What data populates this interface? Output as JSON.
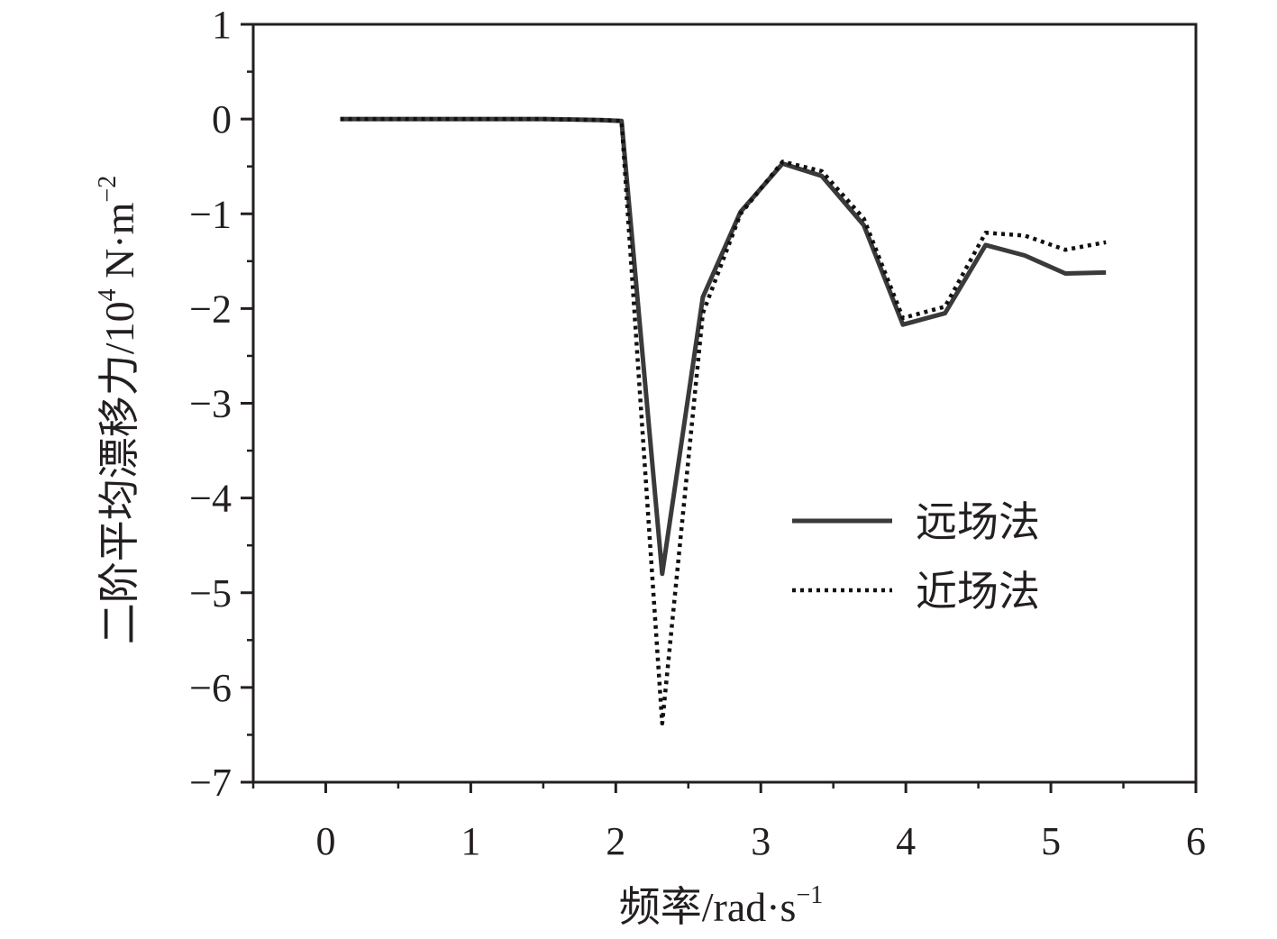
{
  "chart_data": {
    "type": "line",
    "xlabel": "频率/rad·s",
    "xlabel_sup": "−1",
    "ylabel": "二阶平均漂移力/10",
    "ylabel_sup1": "4",
    "ylabel_mid": " N·m",
    "ylabel_sup2": "−2",
    "xlim": [
      -0.5,
      6
    ],
    "ylim": [
      -7,
      1
    ],
    "xticks": [
      0,
      1,
      2,
      3,
      4,
      5,
      6
    ],
    "xtick_labels": [
      "0",
      "1",
      "2",
      "3",
      "4",
      "5",
      "6"
    ],
    "yticks": [
      1,
      0,
      -1,
      -2,
      -3,
      -4,
      -5,
      -6,
      -7
    ],
    "ytick_labels": [
      "1",
      "0",
      "−1",
      "−2",
      "−3",
      "−4",
      "−5",
      "−6",
      "−7"
    ],
    "legend_position": "center-right",
    "series": [
      {
        "name": "远场法",
        "style": "solid",
        "color": "#3a3a3a",
        "x": [
          0.1,
          0.5,
          1.0,
          1.5,
          1.9,
          2.04,
          2.32,
          2.6,
          2.86,
          3.15,
          3.42,
          3.71,
          3.98,
          4.27,
          4.55,
          4.82,
          5.1,
          5.38
        ],
        "y": [
          0,
          0,
          0,
          0,
          -0.01,
          -0.02,
          -4.8,
          -1.88,
          -0.98,
          -0.47,
          -0.6,
          -1.12,
          -2.17,
          -2.05,
          -1.33,
          -1.44,
          -1.63,
          -1.62
        ]
      },
      {
        "name": "近场法",
        "style": "dotted",
        "color": "#111111",
        "x": [
          0.1,
          0.5,
          1.0,
          1.5,
          1.9,
          2.04,
          2.32,
          2.6,
          2.86,
          3.15,
          3.42,
          3.71,
          3.98,
          4.27,
          4.55,
          4.82,
          5.1,
          5.38
        ],
        "y": [
          0,
          0,
          0,
          0,
          -0.01,
          -0.02,
          -6.38,
          -2.05,
          -1.0,
          -0.45,
          -0.55,
          -1.05,
          -2.1,
          -1.98,
          -1.2,
          -1.23,
          -1.38,
          -1.3
        ]
      }
    ]
  }
}
